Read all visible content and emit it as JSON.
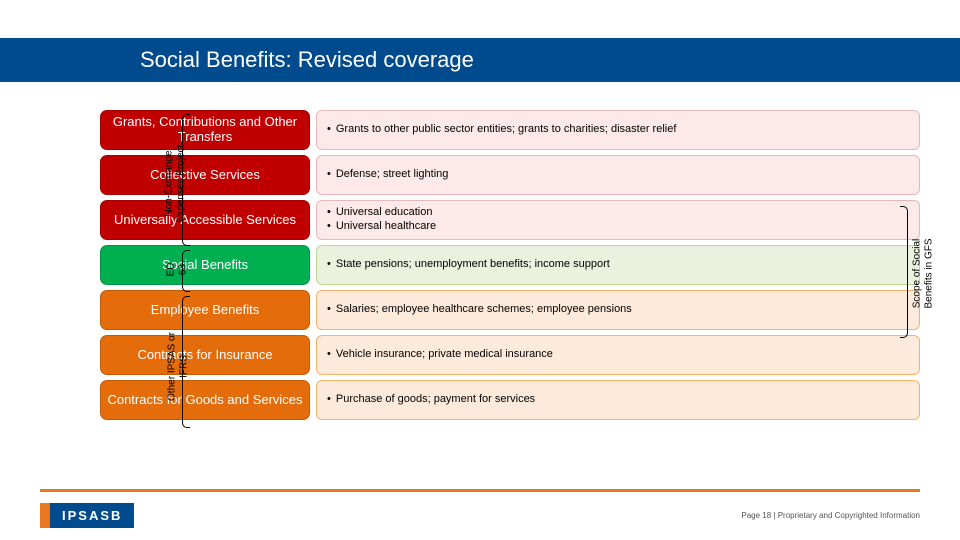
{
  "title": "Social Benefits: Revised coverage",
  "rows": [
    {
      "category": "Grants, Contributions and Other Transfers",
      "bullets": [
        "Grants to other public sector entities; grants to charities; disaster relief"
      ],
      "cat_bg": "#c00000",
      "desc_bg": "#fde9e9",
      "desc_border": "#e5b8b7"
    },
    {
      "category": "Collective Services",
      "bullets": [
        "Defense; street lighting"
      ],
      "cat_bg": "#c00000",
      "desc_bg": "#fde9e9",
      "desc_border": "#e5b8b7"
    },
    {
      "category": "Universally Accessible Services",
      "bullets": [
        "Universal education",
        "Universal healthcare"
      ],
      "cat_bg": "#c00000",
      "desc_bg": "#fde9e9",
      "desc_border": "#e5b8b7"
    },
    {
      "category": "Social Benefits",
      "bullets": [
        "State pensions; unemployment benefits; income support"
      ],
      "cat_bg": "#00b050",
      "desc_bg": "#eaf1dd",
      "desc_border": "#c2d69b"
    },
    {
      "category": "Employee Benefits",
      "bullets": [
        "Salaries; employee healthcare schemes; employee pensions"
      ],
      "cat_bg": "#e46c0a",
      "desc_bg": "#fdeada",
      "desc_border": "#f6b26b"
    },
    {
      "category": "Contracts for Insurance",
      "bullets": [
        "Vehicle insurance; private medical insurance"
      ],
      "cat_bg": "#e46c0a",
      "desc_bg": "#fdeada",
      "desc_border": "#f6b26b"
    },
    {
      "category": "Contracts for Goods and Services",
      "bullets": [
        "Purchase of goods; payment for services"
      ],
      "cat_bg": "#e46c0a",
      "desc_bg": "#fdeada",
      "desc_border": "#f6b26b"
    }
  ],
  "side_labels": {
    "non_exchange": "Non-Exchange\nExpenses Project",
    "ed63": "ED\n63",
    "other_ipsas": "Other IPSAS or\nIFRS",
    "scope_gfs": "Scope of Social\nBenefits in GFS"
  },
  "footer": {
    "logo": "IPSASB",
    "page": "Page 18 | Proprietary and Copyrighted Information"
  }
}
